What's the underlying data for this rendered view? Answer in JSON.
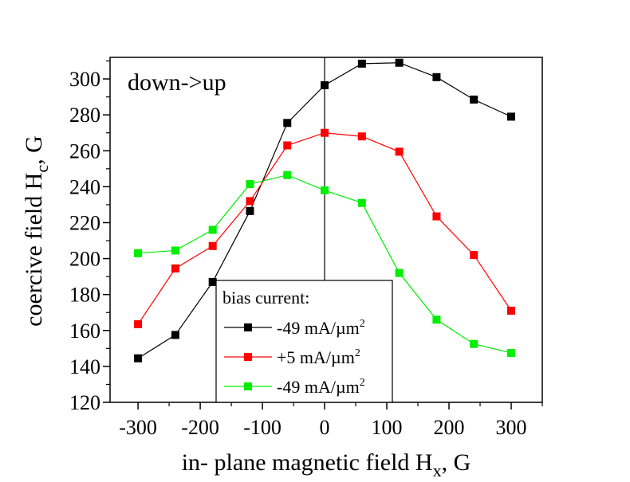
{
  "chart_data": {
    "type": "line",
    "annotation": "down->up",
    "xlabel": {
      "main": "in- plane magnetic field H",
      "sub": "x",
      "tail": ", G"
    },
    "ylabel": {
      "main": "coercive field H",
      "sub": "c",
      "tail": ", G"
    },
    "xlim": [
      -345,
      350
    ],
    "ylim": [
      120,
      312
    ],
    "xticks": [
      -300,
      -200,
      -100,
      0,
      100,
      200,
      300
    ],
    "xtick_labels": [
      "-300",
      "-200",
      "-100",
      "0",
      "100",
      "200",
      "300"
    ],
    "yticks": [
      120,
      140,
      160,
      180,
      200,
      220,
      240,
      260,
      280,
      300
    ],
    "ytick_labels": [
      "120",
      "140",
      "160",
      "180",
      "200",
      "220",
      "240",
      "260",
      "280",
      "300"
    ],
    "vline_x": 0,
    "legend": {
      "title": "bias current:",
      "placement": "bottom-center"
    },
    "x": [
      -300,
      -240,
      -180,
      -120,
      -60,
      0,
      60,
      120,
      180,
      240,
      300
    ],
    "series": [
      {
        "label": {
          "main": "-49 mA/µm",
          "sup": "2"
        },
        "color": "#000000",
        "values": [
          144.5,
          157.5,
          187,
          226.5,
          275.5,
          296.5,
          308.5,
          309,
          301,
          288.5,
          279
        ]
      },
      {
        "label": {
          "main": "+5 mA/µm",
          "sup": "2"
        },
        "color": "#ff0000",
        "values": [
          163.5,
          194.5,
          207,
          232,
          263,
          270,
          268,
          259.5,
          223.5,
          202,
          171
        ]
      },
      {
        "label": {
          "main": "-49 mA/µm",
          "sup": "2"
        },
        "color": "#00ee00",
        "values": [
          203,
          204.5,
          216,
          241.5,
          246.5,
          238,
          231,
          192,
          166,
          152.5,
          147.5
        ]
      }
    ]
  }
}
